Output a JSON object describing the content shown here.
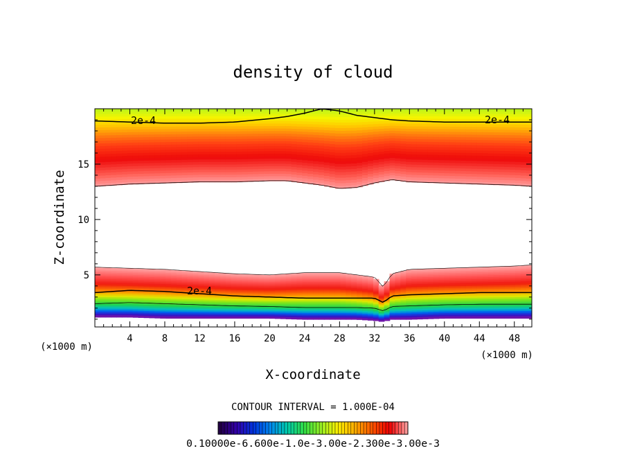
{
  "chart_data": {
    "type": "heatmap",
    "subtype": "filled-contour",
    "title": "density of cloud",
    "xlabel": "X-coordinate",
    "ylabel": "Z-coordinate",
    "x_unit_left": "(×1000 m)",
    "x_unit_right": "(×1000 m)",
    "xlim": [
      0,
      50
    ],
    "ylim": [
      0.3,
      20
    ],
    "x_ticks": [
      4,
      8,
      12,
      16,
      20,
      24,
      28,
      32,
      36,
      40,
      44,
      48
    ],
    "y_ticks": [
      5,
      10,
      15
    ],
    "grid": false,
    "contour_interval_text": "CONTOUR INTERVAL = 1.000E-04",
    "contour_labels": [
      "2e-4",
      "2e-4",
      "2e-4"
    ],
    "colorbar_labels": "0.10000e-6.600e-1.0e-3.00e-2.300e-3.00e-3",
    "colorbar_colors": [
      "#220044",
      "#3300aa",
      "#0033dd",
      "#0088ee",
      "#00ccaa",
      "#33dd44",
      "#99ee22",
      "#ffee00",
      "#ffaa00",
      "#ff5500",
      "#ee0000",
      "#ff9999"
    ],
    "upper_layer": {
      "x": [
        0,
        4,
        8,
        12,
        16,
        20,
        22,
        24,
        26,
        28,
        30,
        32,
        34,
        36,
        40,
        44,
        48,
        50
      ],
      "base_z": [
        13.0,
        13.2,
        13.3,
        13.4,
        13.4,
        13.5,
        13.5,
        13.3,
        13.1,
        12.8,
        12.9,
        13.3,
        13.6,
        13.4,
        13.3,
        13.2,
        13.1,
        13.0
      ],
      "max_z": 15.3,
      "contour_2e4_z": [
        18.9,
        18.8,
        18.7,
        18.7,
        18.8,
        19.1,
        19.3,
        19.6,
        20.0,
        19.8,
        19.4,
        19.2,
        19.0,
        18.9,
        18.8,
        18.8,
        18.8,
        18.8
      ]
    },
    "lower_layer": {
      "x": [
        0,
        4,
        8,
        12,
        16,
        20,
        24,
        28,
        30,
        32,
        33,
        34,
        36,
        40,
        44,
        48,
        50
      ],
      "top_z": [
        5.7,
        5.6,
        5.5,
        5.3,
        5.1,
        5.0,
        5.2,
        5.2,
        5.0,
        4.8,
        3.9,
        5.1,
        5.5,
        5.6,
        5.7,
        5.8,
        5.9
      ],
      "contour_2e4_z": [
        3.4,
        3.6,
        3.5,
        3.3,
        3.1,
        3.0,
        2.9,
        2.9,
        2.9,
        2.9,
        2.5,
        3.1,
        3.2,
        3.3,
        3.4,
        3.4,
        3.4
      ],
      "bottom_z": [
        1.2,
        1.2,
        1.1,
        1.1,
        1.1,
        1.1,
        1.0,
        1.0,
        1.0,
        0.9,
        0.8,
        1.0,
        1.0,
        1.1,
        1.1,
        1.1,
        1.1
      ]
    }
  }
}
